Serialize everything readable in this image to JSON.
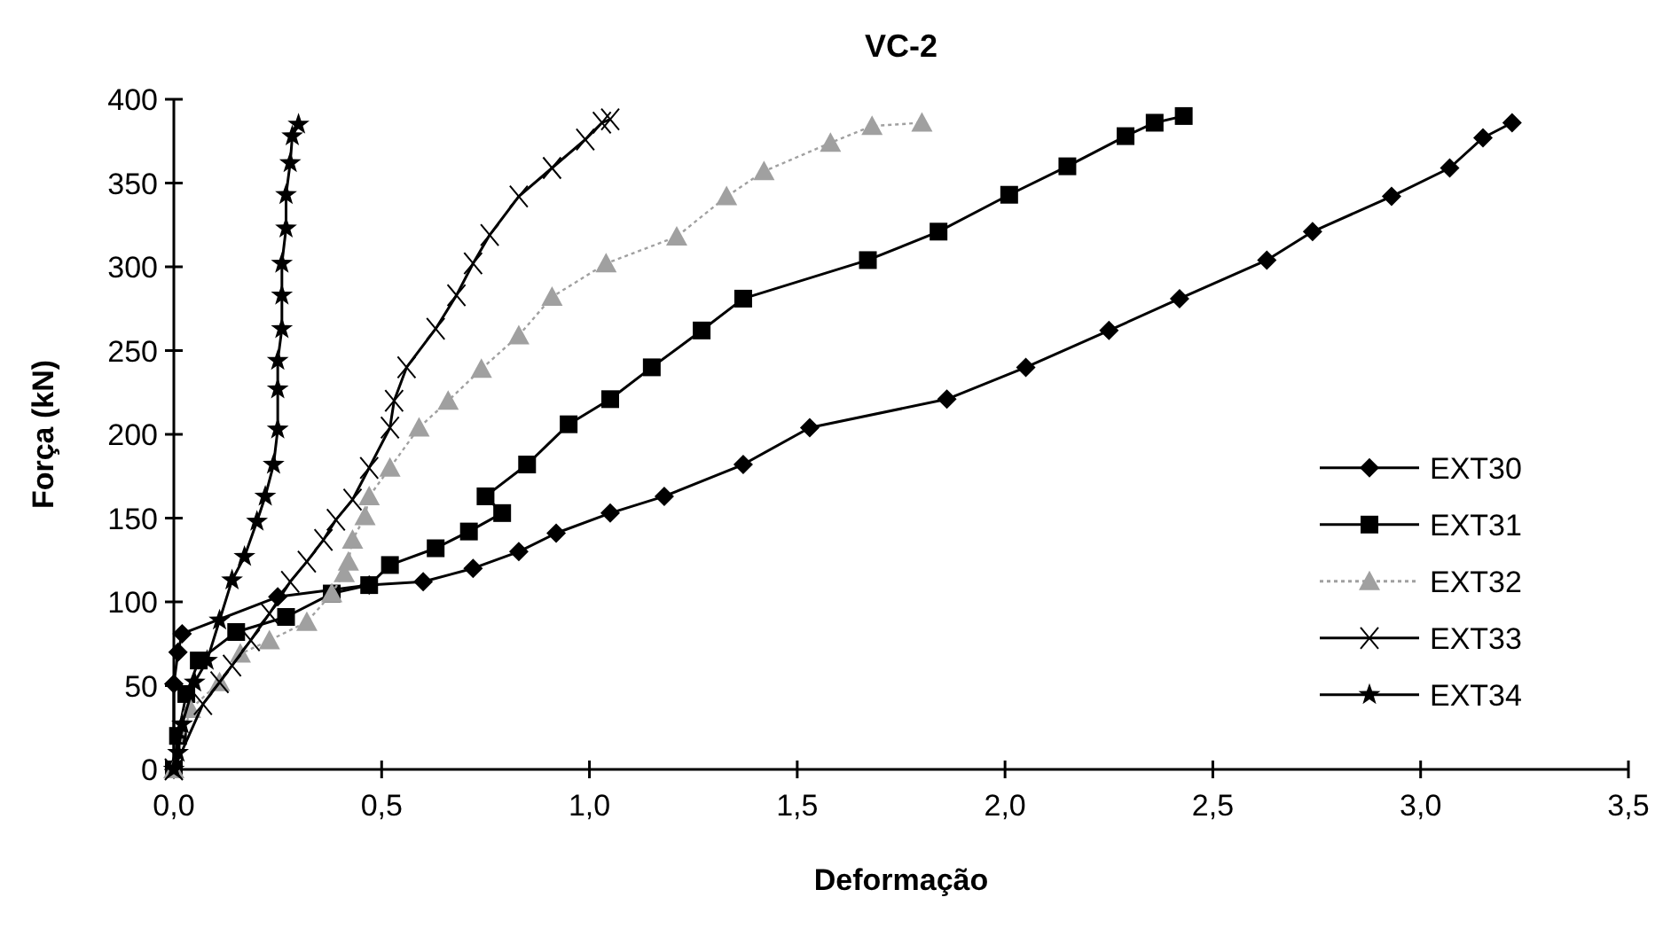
{
  "chart_data": {
    "type": "line",
    "title": "VC-2",
    "xlabel": "Deformação",
    "ylabel": "Força (kN)",
    "xlim": [
      0,
      3.5
    ],
    "ylim": [
      0,
      400
    ],
    "xticks": [
      {
        "value": 0,
        "label": "0,0"
      },
      {
        "value": 0.5,
        "label": "0,5"
      },
      {
        "value": 1,
        "label": "1,0"
      },
      {
        "value": 1.5,
        "label": "1,5"
      },
      {
        "value": 2,
        "label": "2,0"
      },
      {
        "value": 2.5,
        "label": "2,5"
      },
      {
        "value": 3,
        "label": "3,0"
      },
      {
        "value": 3.5,
        "label": "3,5"
      }
    ],
    "yticks": [
      0,
      50,
      100,
      150,
      200,
      250,
      300,
      350,
      400
    ],
    "grid": false,
    "legend": "right",
    "series": [
      {
        "name": "EXT30",
        "color": "#000000",
        "marker": "diamond",
        "line_style": "solid",
        "x": [
          0,
          0,
          0.01,
          0.02,
          0.25,
          0.47,
          0.6,
          0.72,
          0.83,
          0.92,
          1.05,
          1.18,
          1.37,
          1.53,
          1.86,
          2.05,
          2.25,
          2.42,
          2.63,
          2.74,
          2.93,
          3.07,
          3.15,
          3.22
        ],
        "values": [
          0,
          51,
          70,
          81,
          103,
          110,
          112,
          120,
          130,
          141,
          153,
          163,
          182,
          204,
          221,
          240,
          262,
          281,
          304,
          321,
          342,
          359,
          377,
          386
        ]
      },
      {
        "name": "EXT31",
        "color": "#000000",
        "marker": "square",
        "line_style": "solid",
        "x": [
          0,
          0.01,
          0.03,
          0.06,
          0.15,
          0.27,
          0.38,
          0.47,
          0.52,
          0.63,
          0.71,
          0.79,
          0.75,
          0.85,
          0.95,
          1.05,
          1.15,
          1.27,
          1.37,
          1.67,
          1.84,
          2.01,
          2.15,
          2.29,
          2.36,
          2.43
        ],
        "values": [
          0,
          20,
          45,
          65,
          82,
          91,
          105,
          110,
          122,
          132,
          142,
          153,
          163,
          182,
          206,
          221,
          240,
          262,
          281,
          304,
          321,
          343,
          360,
          378,
          386,
          390
        ]
      },
      {
        "name": "EXT32",
        "color": "#a0a0a0",
        "marker": "triangle",
        "line_style": "dotted",
        "x": [
          0,
          0.04,
          0.11,
          0.16,
          0.23,
          0.32,
          0.38,
          0.41,
          0.42,
          0.43,
          0.46,
          0.47,
          0.52,
          0.59,
          0.66,
          0.74,
          0.83,
          0.91,
          1.04,
          1.21,
          1.33,
          1.42,
          1.58,
          1.68,
          1.8
        ],
        "values": [
          0,
          36,
          52,
          69,
          77,
          88,
          105,
          117,
          124,
          137,
          151,
          163,
          180,
          204,
          220,
          239,
          259,
          282,
          302,
          318,
          342,
          357,
          374,
          384,
          386
        ]
      },
      {
        "name": "EXT33",
        "color": "#000000",
        "marker": "cross",
        "line_style": "solid",
        "x": [
          0,
          0.07,
          0.11,
          0.14,
          0.185,
          0.23,
          0.28,
          0.32,
          0.36,
          0.39,
          0.43,
          0.47,
          0.52,
          0.53,
          0.56,
          0.63,
          0.68,
          0.72,
          0.76,
          0.83,
          0.91,
          0.99,
          1.03,
          1.05
        ],
        "values": [
          0,
          39,
          52,
          62,
          77,
          93,
          112,
          124,
          137,
          149,
          161,
          180,
          204,
          220,
          240,
          263,
          283,
          302,
          319,
          342,
          359,
          376,
          386,
          388
        ]
      },
      {
        "name": "EXT34",
        "color": "#000000",
        "marker": "star",
        "line_style": "solid",
        "x": [
          0,
          0.01,
          0.02,
          0.05,
          0.08,
          0.11,
          0.14,
          0.17,
          0.2,
          0.22,
          0.24,
          0.25,
          0.25,
          0.25,
          0.26,
          0.26,
          0.26,
          0.27,
          0.27,
          0.28,
          0.285,
          0.3
        ],
        "values": [
          0,
          10,
          27,
          52,
          65,
          89,
          113,
          127,
          148,
          163,
          182,
          203,
          227,
          244,
          263,
          283,
          302,
          323,
          343,
          362,
          378,
          385
        ]
      }
    ]
  }
}
